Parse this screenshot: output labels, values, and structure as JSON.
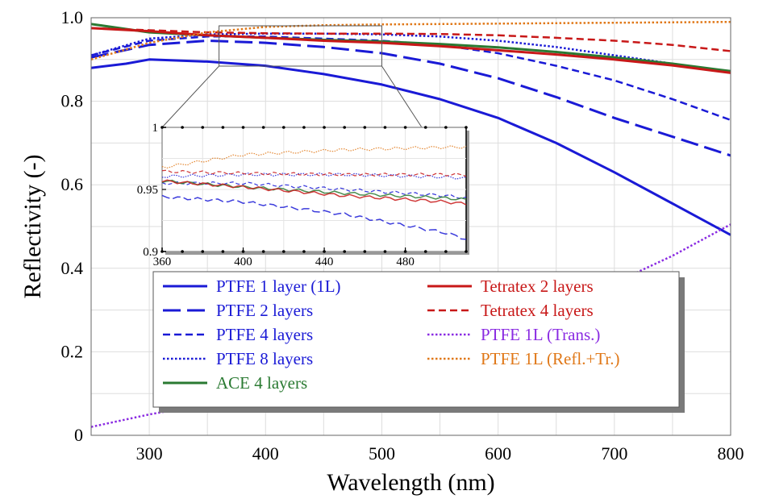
{
  "chart_data": {
    "type": "line",
    "xlabel": "Wavelength (nm)",
    "ylabel": "Reflectivity (-)",
    "xlim": [
      250,
      800
    ],
    "ylim": [
      0,
      1.0
    ],
    "xticks": [
      300,
      400,
      500,
      600,
      700,
      800
    ],
    "yticks": [
      0,
      0.2,
      0.4,
      0.6,
      0.8,
      1.0
    ],
    "ytick_labels": [
      "0",
      "0.2",
      "0.4",
      "0.6",
      "0.8",
      "1.0"
    ],
    "grid": true,
    "legend_position": "bottom-center",
    "series": [
      {
        "name": "PTFE 1 layer (1L)",
        "color": "#1a1ad6",
        "style": "solid",
        "width": 3,
        "x": [
          250,
          280,
          300,
          350,
          400,
          450,
          500,
          550,
          600,
          650,
          700,
          750,
          800
        ],
        "y": [
          0.88,
          0.89,
          0.9,
          0.895,
          0.885,
          0.865,
          0.84,
          0.805,
          0.76,
          0.7,
          0.63,
          0.555,
          0.48
        ]
      },
      {
        "name": "PTFE 2 layers",
        "color": "#1a1ad6",
        "style": "longdash",
        "width": 3,
        "x": [
          250,
          300,
          350,
          400,
          450,
          500,
          550,
          600,
          650,
          700,
          750,
          800
        ],
        "y": [
          0.905,
          0.935,
          0.945,
          0.94,
          0.93,
          0.915,
          0.89,
          0.855,
          0.81,
          0.76,
          0.715,
          0.67
        ]
      },
      {
        "name": "PTFE 4 layers",
        "color": "#1a1ad6",
        "style": "dash",
        "width": 2.5,
        "x": [
          250,
          300,
          350,
          400,
          450,
          500,
          550,
          600,
          650,
          700,
          750,
          800
        ],
        "y": [
          0.91,
          0.945,
          0.955,
          0.955,
          0.95,
          0.945,
          0.935,
          0.915,
          0.885,
          0.85,
          0.805,
          0.755
        ]
      },
      {
        "name": "PTFE 8 layers",
        "color": "#1a1ad6",
        "style": "dot",
        "width": 2.5,
        "x": [
          250,
          300,
          350,
          400,
          450,
          500,
          550,
          600,
          650,
          700,
          750,
          800
        ],
        "y": [
          0.91,
          0.95,
          0.96,
          0.962,
          0.962,
          0.96,
          0.955,
          0.945,
          0.93,
          0.91,
          0.89,
          0.87
        ]
      },
      {
        "name": "ACE 4 layers",
        "color": "#2a7a32",
        "style": "solid",
        "width": 3,
        "x": [
          250,
          300,
          350,
          400,
          450,
          500,
          550,
          600,
          650,
          700,
          750,
          800
        ],
        "y": [
          0.985,
          0.965,
          0.958,
          0.952,
          0.947,
          0.943,
          0.937,
          0.929,
          0.918,
          0.905,
          0.89,
          0.872
        ]
      },
      {
        "name": "Tetratex 2 layers",
        "color": "#c81818",
        "style": "solid",
        "width": 3,
        "x": [
          250,
          300,
          350,
          400,
          450,
          500,
          550,
          600,
          650,
          700,
          750,
          800
        ],
        "y": [
          0.975,
          0.968,
          0.958,
          0.952,
          0.945,
          0.94,
          0.932,
          0.922,
          0.912,
          0.9,
          0.886,
          0.868
        ]
      },
      {
        "name": "Tetratex 4 layers",
        "color": "#c81818",
        "style": "dash",
        "width": 2.5,
        "x": [
          250,
          300,
          350,
          400,
          450,
          500,
          550,
          600,
          650,
          700,
          750,
          800
        ],
        "y": [
          0.975,
          0.97,
          0.965,
          0.963,
          0.962,
          0.962,
          0.961,
          0.958,
          0.952,
          0.945,
          0.935,
          0.92
        ]
      },
      {
        "name": "PTFE 1L (Trans.)",
        "color": "#8a2be2",
        "style": "dot",
        "width": 2.5,
        "x": [
          250,
          300,
          350,
          400,
          450,
          500,
          550,
          600,
          650,
          700,
          750,
          800
        ],
        "y": [
          0.02,
          0.05,
          0.075,
          0.1,
          0.13,
          0.165,
          0.205,
          0.25,
          0.305,
          0.365,
          0.43,
          0.505
        ]
      },
      {
        "name": "PTFE 1L (Refl.+Tr.)",
        "color": "#e07818",
        "style": "dot",
        "width": 2.5,
        "x": [
          250,
          300,
          350,
          400,
          450,
          500,
          550,
          600,
          650,
          700,
          750,
          800
        ],
        "y": [
          0.9,
          0.94,
          0.965,
          0.978,
          0.982,
          0.984,
          0.985,
          0.986,
          0.987,
          0.988,
          0.989,
          0.99
        ]
      }
    ],
    "inset": {
      "xlim": [
        360,
        510
      ],
      "ylim": [
        0.9,
        1.0
      ],
      "xticks": [
        360,
        400,
        440,
        480
      ],
      "yticks": [
        0.9,
        0.95,
        1.0
      ],
      "ytick_labels": [
        "0.9",
        "0.95",
        "1"
      ],
      "zoom_box": {
        "x": [
          360,
          500
        ],
        "y": [
          0.9,
          1.0
        ]
      }
    }
  }
}
